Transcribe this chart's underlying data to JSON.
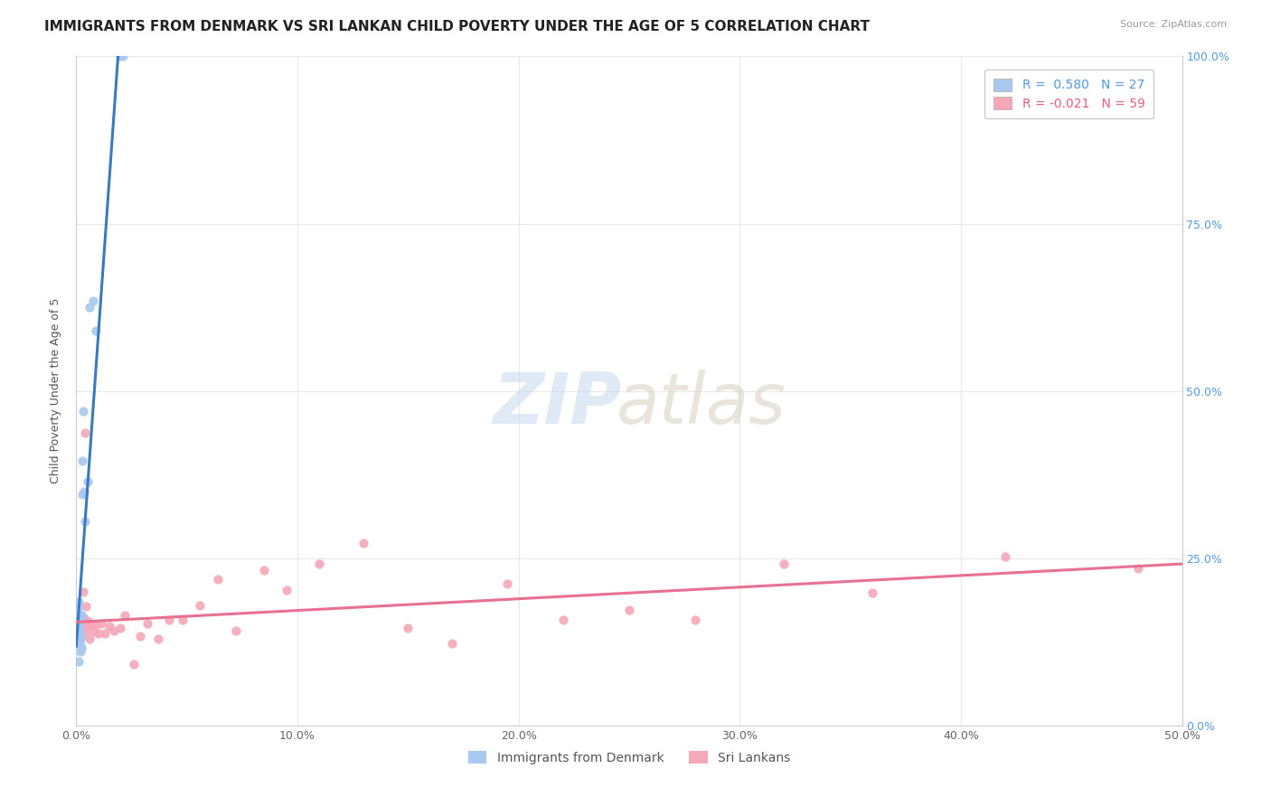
{
  "title": "IMMIGRANTS FROM DENMARK VS SRI LANKAN CHILD POVERTY UNDER THE AGE OF 5 CORRELATION CHART",
  "source": "Source: ZipAtlas.com",
  "ylabel": "Child Poverty Under the Age of 5",
  "xlim": [
    0.0,
    0.5
  ],
  "ylim": [
    0.0,
    1.0
  ],
  "x_ticks": [
    0.0,
    0.1,
    0.2,
    0.3,
    0.4,
    0.5
  ],
  "x_tick_labels": [
    "0.0%",
    "10.0%",
    "20.0%",
    "30.0%",
    "40.0%",
    "50.0%"
  ],
  "y_ticks": [
    0.0,
    0.25,
    0.5,
    0.75,
    1.0
  ],
  "y_tick_labels_right": [
    "0.0%",
    "25.0%",
    "50.0%",
    "75.0%",
    "100.0%"
  ],
  "denmark_R": 0.58,
  "denmark_N": 27,
  "srilanka_R": -0.021,
  "srilanka_N": 59,
  "denmark_color": "#a8c8ee",
  "srilanka_color": "#f4a8b8",
  "denmark_line_color": "#3a7abf",
  "srilanka_line_color": "#e87090",
  "denmark_dash_color": "#90c8e8",
  "background_color": "#ffffff",
  "grid_color": "#e8e8e8",
  "title_fontsize": 11,
  "axis_label_fontsize": 9,
  "tick_fontsize": 9,
  "legend_fontsize": 10,
  "denmark_scatter_x": [
    0.0005,
    0.0008,
    0.001,
    0.0012,
    0.0012,
    0.0013,
    0.0015,
    0.0016,
    0.0017,
    0.0018,
    0.0018,
    0.002,
    0.0021,
    0.0022,
    0.0023,
    0.0025,
    0.0027,
    0.0028,
    0.003,
    0.0035,
    0.004,
    0.005,
    0.006,
    0.0075,
    0.009,
    0.02,
    0.021
  ],
  "denmark_scatter_y": [
    0.155,
    0.175,
    0.125,
    0.095,
    0.185,
    0.13,
    0.145,
    0.14,
    0.11,
    0.165,
    0.12,
    0.135,
    0.13,
    0.165,
    0.115,
    0.165,
    0.395,
    0.345,
    0.47,
    0.35,
    0.305,
    0.365,
    0.625,
    0.635,
    0.59,
    1.0,
    1.0
  ],
  "srilanka_scatter_x": [
    0.0003,
    0.0005,
    0.0006,
    0.0008,
    0.0009,
    0.001,
    0.0011,
    0.0012,
    0.0013,
    0.0014,
    0.0015,
    0.0016,
    0.0018,
    0.002,
    0.0022,
    0.0025,
    0.0028,
    0.003,
    0.0032,
    0.0034,
    0.0038,
    0.0042,
    0.0045,
    0.005,
    0.006,
    0.0065,
    0.007,
    0.008,
    0.009,
    0.01,
    0.0115,
    0.013,
    0.015,
    0.017,
    0.02,
    0.022,
    0.026,
    0.029,
    0.032,
    0.037,
    0.042,
    0.048,
    0.056,
    0.064,
    0.072,
    0.085,
    0.095,
    0.11,
    0.13,
    0.15,
    0.17,
    0.195,
    0.22,
    0.25,
    0.28,
    0.32,
    0.36,
    0.42,
    0.48
  ],
  "srilanka_scatter_y": [
    0.155,
    0.13,
    0.16,
    0.135,
    0.148,
    0.122,
    0.128,
    0.142,
    0.152,
    0.131,
    0.128,
    0.158,
    0.136,
    0.148,
    0.133,
    0.158,
    0.148,
    0.2,
    0.162,
    0.145,
    0.438,
    0.14,
    0.178,
    0.157,
    0.13,
    0.148,
    0.152,
    0.14,
    0.15,
    0.138,
    0.152,
    0.138,
    0.148,
    0.142,
    0.145,
    0.165,
    0.092,
    0.133,
    0.152,
    0.13,
    0.158,
    0.158,
    0.18,
    0.218,
    0.142,
    0.232,
    0.202,
    0.242,
    0.272,
    0.145,
    0.122,
    0.212,
    0.158,
    0.172,
    0.158,
    0.242,
    0.198,
    0.252,
    0.235
  ],
  "watermark_zip_color": "#c5daf0",
  "watermark_atlas_color": "#d8cfc0"
}
